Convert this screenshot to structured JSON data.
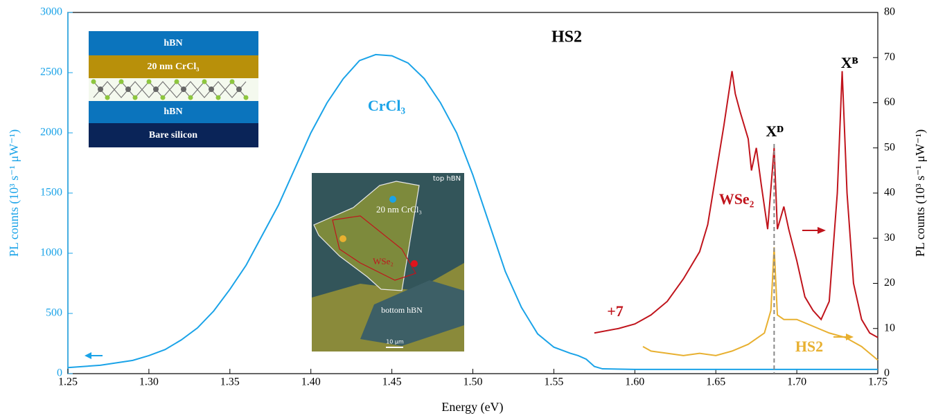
{
  "chart_data": {
    "type": "line",
    "title": "HS2",
    "xlabel": "Energy (eV)",
    "ylabel": "PL counts (10³ s⁻¹ μW⁻¹)",
    "y2label": "PL counts (10³ s⁻¹ μW⁻¹)",
    "xlim": [
      1.25,
      1.75
    ],
    "xticks": [
      1.25,
      {
        "value": 1.3,
        "label": "1.30"
      },
      1.35,
      {
        "value": 1.4,
        "label": "1.40"
      },
      1.45,
      {
        "value": 1.5,
        "label": "1.50"
      },
      1.55,
      {
        "value": 1.6,
        "label": "1.60"
      },
      1.65,
      {
        "value": 1.7,
        "label": "1.70"
      },
      1.75
    ],
    "ylim": [
      0,
      3000
    ],
    "yticks": [
      0,
      500,
      1000,
      1500,
      2000,
      2500,
      3000
    ],
    "y2lim": [
      0,
      80
    ],
    "y2ticks": [
      0,
      10,
      20,
      30,
      40,
      50,
      60,
      70,
      80
    ],
    "series": [
      {
        "name": "CrCl₃",
        "color": "#1aa3e8",
        "axis": "y",
        "x": [
          1.25,
          1.27,
          1.29,
          1.3,
          1.31,
          1.32,
          1.33,
          1.34,
          1.35,
          1.36,
          1.37,
          1.38,
          1.39,
          1.4,
          1.41,
          1.42,
          1.43,
          1.44,
          1.45,
          1.46,
          1.47,
          1.48,
          1.49,
          1.5,
          1.51,
          1.52,
          1.53,
          1.54,
          1.55,
          1.56,
          1.565,
          1.57,
          1.575,
          1.58,
          1.6,
          1.65,
          1.7,
          1.75
        ],
        "values": [
          50,
          70,
          110,
          150,
          200,
          280,
          380,
          520,
          700,
          900,
          1150,
          1400,
          1700,
          2000,
          2250,
          2450,
          2600,
          2650,
          2640,
          2580,
          2450,
          2250,
          2000,
          1650,
          1250,
          850,
          550,
          330,
          220,
          170,
          150,
          120,
          60,
          40,
          35,
          35,
          35,
          35
        ]
      },
      {
        "name": "WSe₂",
        "color": "#c0141c",
        "axis": "y2",
        "x": [
          1.575,
          1.59,
          1.6,
          1.605,
          1.61,
          1.615,
          1.62,
          1.63,
          1.64,
          1.645,
          1.65,
          1.655,
          1.66,
          1.662,
          1.665,
          1.67,
          1.672,
          1.675,
          1.678,
          1.682,
          1.686,
          1.688,
          1.692,
          1.695,
          1.7,
          1.705,
          1.71,
          1.715,
          1.72,
          1.725,
          1.728,
          1.731,
          1.735,
          1.74,
          1.745,
          1.75
        ],
        "values": [
          9,
          10,
          11,
          12,
          13,
          14.5,
          16,
          21,
          27,
          33,
          44,
          55,
          67,
          62,
          58,
          52,
          45,
          50,
          42,
          32,
          50,
          32,
          37,
          32,
          25,
          17,
          14,
          12,
          16,
          40,
          67,
          40,
          20,
          12,
          9,
          8
        ]
      },
      {
        "name": "HS2",
        "color": "#e8b030",
        "axis": "y2",
        "x": [
          1.605,
          1.61,
          1.62,
          1.63,
          1.64,
          1.65,
          1.66,
          1.67,
          1.68,
          1.684,
          1.686,
          1.688,
          1.692,
          1.7,
          1.71,
          1.72,
          1.73,
          1.74,
          1.75
        ],
        "values": [
          6,
          5,
          4.5,
          4,
          4.5,
          4,
          5,
          6.5,
          9,
          14,
          28,
          13,
          12,
          12,
          10.5,
          9,
          8,
          6,
          3
        ]
      }
    ],
    "annotations": [
      "+7",
      "Xᴰ",
      "Xᴮ"
    ]
  },
  "schematic": {
    "layers": [
      "hBN",
      "20 nm CrCl₃",
      "hBN",
      "Bare silicon"
    ]
  },
  "micrograph": {
    "labels": [
      "top hBN",
      "20 nm CrCl₃",
      "WSe₂",
      "bottom hBN",
      "10 μm"
    ]
  }
}
